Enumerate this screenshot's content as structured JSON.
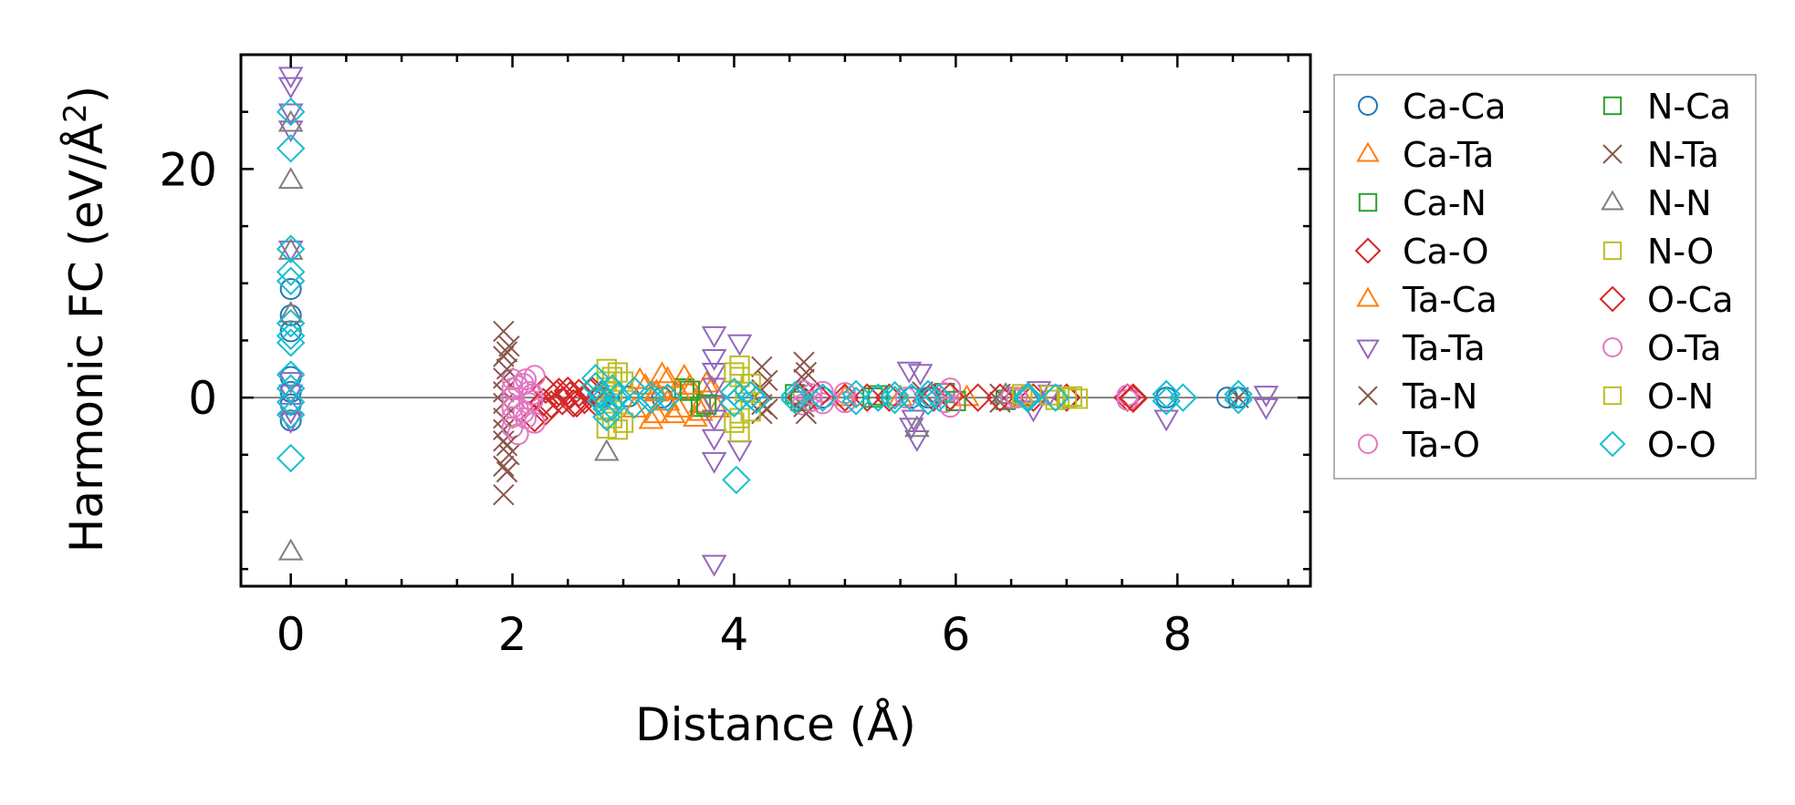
{
  "chart_data": {
    "type": "scatter",
    "xlabel": "Distance (Å)",
    "ylabel": "Harmonic FC (eV/Å²)",
    "ylabel_base": "Harmonic FC (eV/Å",
    "ylabel_sup": "2",
    "ylabel_tail": ")",
    "xlim": [
      -0.45,
      9.2
    ],
    "ylim": [
      -16.5,
      30
    ],
    "xticks": [
      0,
      2,
      4,
      6,
      8
    ],
    "yticks": [
      0,
      20
    ],
    "x_tick_labels": [
      "0",
      "2",
      "4",
      "6",
      "8"
    ],
    "y_tick_labels": [
      "0",
      "20"
    ],
    "zero_line": true,
    "legend_location": "outside-right",
    "series": [
      {
        "name": "Ca-Ca",
        "marker": "circle",
        "color": "#1f77b4",
        "points": [
          [
            0,
            9.5
          ],
          [
            0,
            7.2
          ],
          [
            0,
            5.8
          ],
          [
            0,
            1.8
          ],
          [
            0,
            0.5
          ],
          [
            0,
            -0.6
          ],
          [
            0,
            -2
          ],
          [
            2.8,
            0
          ],
          [
            3.05,
            0.1
          ],
          [
            3.35,
            0
          ],
          [
            4.6,
            0
          ],
          [
            4.8,
            0
          ],
          [
            5.6,
            0
          ],
          [
            5.75,
            0
          ],
          [
            6.5,
            0
          ],
          [
            7.0,
            0
          ],
          [
            7.9,
            0
          ],
          [
            8.45,
            0
          ],
          [
            8.55,
            0
          ]
        ]
      },
      {
        "name": "Ca-Ta",
        "marker": "triangle-up",
        "color": "#ff7f0e",
        "points": [
          [
            3.15,
            1.5
          ],
          [
            3.25,
            -2.0
          ],
          [
            3.35,
            2.0
          ],
          [
            3.45,
            -1.5
          ],
          [
            3.55,
            1.8
          ],
          [
            3.65,
            -1.8
          ],
          [
            3.75,
            1.2
          ],
          [
            3.85,
            -1.0
          ],
          [
            3.1,
            -1.0
          ],
          [
            3.6,
            0.5
          ],
          [
            3.3,
            0.4
          ],
          [
            3.7,
            -0.6
          ],
          [
            5.0,
            0
          ],
          [
            5.5,
            0
          ],
          [
            6.1,
            0
          ],
          [
            6.6,
            0
          ]
        ]
      },
      {
        "name": "Ca-N",
        "marker": "square",
        "color": "#2ca02c",
        "points": [
          [
            3.55,
            0.8
          ],
          [
            3.7,
            -0.8
          ],
          [
            4.55,
            0.3
          ],
          [
            5.25,
            0
          ],
          [
            5.9,
            0.4
          ],
          [
            6.45,
            -0.2
          ]
        ]
      },
      {
        "name": "Ca-O",
        "marker": "diamond",
        "color": "#d62728",
        "points": [
          [
            2.3,
            0.7
          ],
          [
            2.35,
            -0.6
          ],
          [
            2.4,
            0.3
          ],
          [
            2.45,
            -0.3
          ],
          [
            2.5,
            0.6
          ],
          [
            2.55,
            -0.5
          ],
          [
            2.6,
            0.4
          ],
          [
            2.65,
            -0.2
          ],
          [
            2.7,
            0.5
          ],
          [
            2.75,
            -0.4
          ],
          [
            2.8,
            0.2
          ],
          [
            2.2,
            -1.8
          ],
          [
            2.3,
            -1.2
          ],
          [
            4.6,
            0
          ],
          [
            5.0,
            0
          ],
          [
            5.4,
            0
          ],
          [
            5.8,
            0
          ],
          [
            6.2,
            0
          ],
          [
            6.7,
            0
          ],
          [
            7.0,
            0
          ],
          [
            7.55,
            0
          ],
          [
            7.6,
            0
          ]
        ]
      },
      {
        "name": "Ta-Ca",
        "marker": "triangle-up",
        "color": "#ff7f0e",
        "points": [
          [
            3.2,
            1.0
          ],
          [
            3.3,
            -1.5
          ],
          [
            3.4,
            1.6
          ],
          [
            3.5,
            -1.0
          ],
          [
            3.6,
            1.0
          ],
          [
            3.7,
            -1.3
          ],
          [
            3.8,
            0.8
          ],
          [
            3.3,
            0.5
          ],
          [
            3.5,
            0.5
          ],
          [
            3.4,
            -0.4
          ]
        ]
      },
      {
        "name": "Ta-Ta",
        "marker": "triangle-down",
        "color": "#9467bd",
        "points": [
          [
            0,
            28.2
          ],
          [
            0,
            27.3
          ],
          [
            0,
            25.0
          ],
          [
            0,
            23.5
          ],
          [
            0,
            13
          ],
          [
            0,
            1.5
          ],
          [
            0,
            0.4
          ],
          [
            0,
            -1.2
          ],
          [
            0,
            -2.0
          ],
          [
            3.82,
            5.5
          ],
          [
            3.82,
            3.5
          ],
          [
            3.82,
            2.3
          ],
          [
            3.82,
            1.0
          ],
          [
            3.82,
            -0.5
          ],
          [
            3.82,
            -1.8
          ],
          [
            3.82,
            -3.5
          ],
          [
            3.82,
            -5.5
          ],
          [
            3.82,
            -14.5
          ],
          [
            4.05,
            4.8
          ],
          [
            4.05,
            -4.5
          ],
          [
            5.58,
            2.4
          ],
          [
            5.68,
            2.2
          ],
          [
            5.6,
            -2.5
          ],
          [
            5.65,
            -3.6
          ],
          [
            5.62,
            -1.8
          ],
          [
            6.75,
            0.7
          ],
          [
            6.85,
            0.4
          ],
          [
            6.7,
            -1.0
          ],
          [
            7.9,
            -1.8
          ],
          [
            8.8,
            0.3
          ],
          [
            8.8,
            -0.8
          ]
        ]
      },
      {
        "name": "Ta-N",
        "marker": "x",
        "color": "#8c564b",
        "points": [
          [
            1.92,
            5.8
          ],
          [
            1.92,
            3.6
          ],
          [
            1.92,
            1.7
          ],
          [
            1.92,
            0.5
          ],
          [
            1.92,
            -0.5
          ],
          [
            1.92,
            -1.8
          ],
          [
            1.92,
            -2.8
          ],
          [
            1.92,
            -3.8
          ],
          [
            1.92,
            -6.0
          ],
          [
            1.92,
            -8.5
          ],
          [
            1.97,
            4.5
          ],
          [
            1.97,
            -5.0
          ],
          [
            4.25,
            2.7
          ],
          [
            4.25,
            0.7
          ],
          [
            4.25,
            -0.6
          ],
          [
            4.25,
            -1.4
          ],
          [
            4.63,
            3.1
          ],
          [
            4.63,
            1.6
          ],
          [
            4.63,
            -0.8
          ],
          [
            5.7,
            0.5
          ],
          [
            6.4,
            0.3
          ],
          [
            6.4,
            -0.4
          ],
          [
            8.55,
            0
          ]
        ]
      },
      {
        "name": "Ta-O",
        "marker": "circle",
        "color": "#e377c2",
        "points": [
          [
            2.0,
            1.6
          ],
          [
            2.0,
            0.8
          ],
          [
            2.0,
            0
          ],
          [
            2.0,
            -0.9
          ],
          [
            2.0,
            -1.7
          ],
          [
            2.0,
            -2.6
          ],
          [
            2.05,
            -3.2
          ],
          [
            2.1,
            1.2
          ],
          [
            2.1,
            -1.3
          ],
          [
            2.15,
            0.5
          ],
          [
            2.15,
            -0.5
          ],
          [
            2.2,
            1.9
          ],
          [
            2.2,
            -2.2
          ],
          [
            4.62,
            0.6
          ],
          [
            4.62,
            -0.6
          ],
          [
            4.8,
            0.5
          ],
          [
            4.8,
            -0.5
          ],
          [
            5.55,
            0
          ],
          [
            5.9,
            0.4
          ],
          [
            5.9,
            -0.4
          ],
          [
            6.5,
            0
          ],
          [
            7.55,
            0.2
          ],
          [
            7.55,
            -0.2
          ]
        ]
      },
      {
        "name": "N-Ca",
        "marker": "square",
        "color": "#2ca02c",
        "points": [
          [
            3.6,
            0.6
          ],
          [
            3.75,
            -0.6
          ],
          [
            4.6,
            -0.3
          ],
          [
            5.3,
            0.2
          ],
          [
            6.0,
            -0.3
          ]
        ]
      },
      {
        "name": "N-Ta",
        "marker": "x",
        "color": "#8c564b",
        "points": [
          [
            1.95,
            4.0
          ],
          [
            1.95,
            -4.2
          ],
          [
            1.95,
            -6.5
          ],
          [
            1.95,
            2.5
          ],
          [
            4.3,
            1.5
          ],
          [
            4.3,
            -1.0
          ],
          [
            4.65,
            2.2
          ],
          [
            4.65,
            -1.4
          ]
        ]
      },
      {
        "name": "N-N",
        "marker": "triangle-up",
        "color": "#7f7f7f",
        "points": [
          [
            0,
            24.0
          ],
          [
            0,
            19.0
          ],
          [
            0,
            12.8
          ],
          [
            0,
            7.3
          ],
          [
            0,
            -13.5
          ],
          [
            2.85,
            -4.8
          ],
          [
            5.65,
            -2.7
          ],
          [
            6.45,
            0.2
          ]
        ]
      },
      {
        "name": "N-O",
        "marker": "square",
        "color": "#bcbd22",
        "points": [
          [
            2.85,
            2.5
          ],
          [
            2.85,
            1.4
          ],
          [
            2.85,
            -1.0
          ],
          [
            2.85,
            -2.7
          ],
          [
            2.95,
            2.2
          ],
          [
            2.95,
            -2.8
          ],
          [
            2.9,
            0.5
          ],
          [
            2.9,
            -0.5
          ],
          [
            4.05,
            2.8
          ],
          [
            4.05,
            1.8
          ],
          [
            4.05,
            -1.8
          ],
          [
            4.05,
            -3.0
          ],
          [
            4.1,
            0.5
          ],
          [
            6.6,
            0
          ],
          [
            6.85,
            0.2
          ],
          [
            6.9,
            -0.2
          ],
          [
            7.05,
            0.1
          ],
          [
            7.1,
            -0.1
          ]
        ]
      },
      {
        "name": "O-Ca",
        "marker": "diamond",
        "color": "#d62728",
        "points": [
          [
            2.28,
            -0.4
          ],
          [
            2.42,
            0.5
          ],
          [
            2.58,
            -0.5
          ],
          [
            2.72,
            0.6
          ],
          [
            2.52,
            0.2
          ],
          [
            4.75,
            0.1
          ],
          [
            5.2,
            0
          ],
          [
            5.95,
            0.1
          ],
          [
            6.4,
            0
          ],
          [
            7.6,
            -0.1
          ]
        ]
      },
      {
        "name": "O-Ta",
        "marker": "circle",
        "color": "#e377c2",
        "points": [
          [
            2.05,
            1.0
          ],
          [
            2.05,
            -1.0
          ],
          [
            2.12,
            1.6
          ],
          [
            2.12,
            -1.8
          ],
          [
            2.18,
            0.3
          ],
          [
            2.18,
            -0.3
          ],
          [
            4.7,
            0.3
          ],
          [
            4.7,
            -0.3
          ],
          [
            5.0,
            0.4
          ],
          [
            5.0,
            -0.4
          ],
          [
            5.95,
            0.8
          ],
          [
            5.95,
            -0.8
          ],
          [
            6.55,
            0
          ]
        ]
      },
      {
        "name": "O-N",
        "marker": "square",
        "color": "#bcbd22",
        "points": [
          [
            2.9,
            1.8
          ],
          [
            2.9,
            -1.8
          ],
          [
            3.0,
            1.4
          ],
          [
            3.0,
            -2.2
          ],
          [
            4.0,
            2.2
          ],
          [
            4.0,
            -2.2
          ],
          [
            4.15,
            1.2
          ],
          [
            4.15,
            -1.2
          ],
          [
            6.6,
            0.3
          ],
          [
            7.0,
            0
          ]
        ]
      },
      {
        "name": "O-O",
        "marker": "diamond",
        "color": "#17becf",
        "points": [
          [
            0,
            25.0
          ],
          [
            0,
            21.8
          ],
          [
            0,
            13.0
          ],
          [
            0,
            11.0
          ],
          [
            0,
            10.2
          ],
          [
            0,
            6.5
          ],
          [
            0,
            5.4
          ],
          [
            0,
            4.8
          ],
          [
            0,
            2.0
          ],
          [
            0,
            0.8
          ],
          [
            0,
            -0.4
          ],
          [
            0,
            -1.5
          ],
          [
            0,
            -5.3
          ],
          [
            2.75,
            1.7
          ],
          [
            2.75,
            1.0
          ],
          [
            2.8,
            0.3
          ],
          [
            2.8,
            -0.3
          ],
          [
            2.85,
            -1.0
          ],
          [
            2.85,
            -1.7
          ],
          [
            2.9,
            0.8
          ],
          [
            2.9,
            -0.8
          ],
          [
            2.95,
            0.1
          ],
          [
            3.1,
            0.6
          ],
          [
            3.1,
            -0.6
          ],
          [
            3.25,
            0.2
          ],
          [
            3.25,
            -0.2
          ],
          [
            3.4,
            0
          ],
          [
            4.0,
            0.5
          ],
          [
            4.0,
            -0.5
          ],
          [
            4.05,
            0
          ],
          [
            4.02,
            -7.2
          ],
          [
            4.15,
            0.2
          ],
          [
            4.2,
            -0.2
          ],
          [
            4.55,
            0.2
          ],
          [
            4.55,
            -0.2
          ],
          [
            4.8,
            0
          ],
          [
            5.1,
            0.3
          ],
          [
            5.1,
            -0.3
          ],
          [
            5.3,
            0
          ],
          [
            5.45,
            0.2
          ],
          [
            5.45,
            -0.2
          ],
          [
            5.6,
            0
          ],
          [
            5.75,
            0.3
          ],
          [
            5.75,
            -0.3
          ],
          [
            5.85,
            0
          ],
          [
            6.65,
            0.1
          ],
          [
            6.65,
            -0.1
          ],
          [
            6.9,
            0
          ],
          [
            7.9,
            0.3
          ],
          [
            7.9,
            -0.3
          ],
          [
            8.05,
            0
          ],
          [
            8.55,
            0.3
          ],
          [
            8.55,
            -0.2
          ]
        ]
      }
    ]
  }
}
